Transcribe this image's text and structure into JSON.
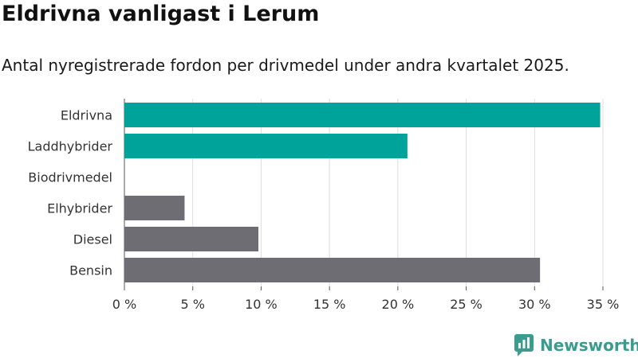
{
  "header": {
    "title": "Eldrivna vanligast i Lerum",
    "subtitle": "Antal nyregistrerade fordon per drivmedel under andra kvartalet 2025."
  },
  "brand": {
    "name": "Newsworthy",
    "icon": "newsworthy-logo-icon",
    "color": "#3a9c8f"
  },
  "chart_data": {
    "type": "bar",
    "orientation": "horizontal",
    "categories": [
      "Eldrivna",
      "Laddhybrider",
      "Biodrivmedel",
      "Elhybrider",
      "Diesel",
      "Bensin"
    ],
    "values": [
      34.8,
      20.7,
      0,
      4.4,
      9.8,
      30.4
    ],
    "colors": [
      "#00a39a",
      "#00a39a",
      "#00a39a",
      "#6e6d73",
      "#6e6d73",
      "#6e6d73"
    ],
    "xlim": [
      0,
      35
    ],
    "xticks": [
      0,
      5,
      10,
      15,
      20,
      25,
      30,
      35
    ],
    "xtick_labels": [
      "0 %",
      "5 %",
      "10 %",
      "15 %",
      "20 %",
      "25 %",
      "30 %",
      "35 %"
    ],
    "grid": "vertical",
    "legend": "none",
    "xlabel": "",
    "ylabel": ""
  }
}
